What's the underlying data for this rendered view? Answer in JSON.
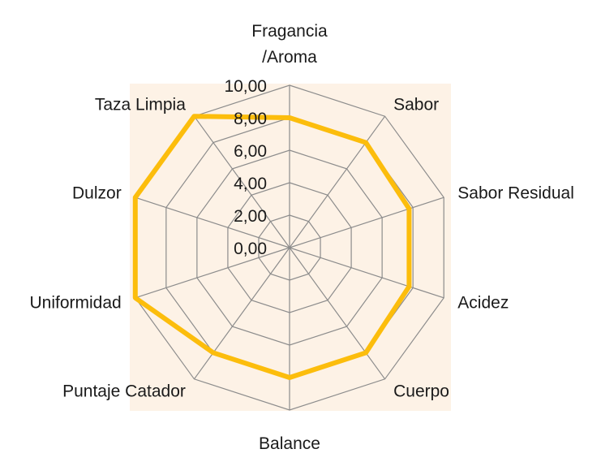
{
  "colors": {
    "plot_background": "#fdf2e6",
    "grid": "#8c8c8c",
    "series": "#fcbd0c"
  },
  "chart_data": {
    "type": "radar",
    "categories": [
      "Fragancia\n/Aroma",
      "Sabor",
      "Sabor Residual",
      "Acidez",
      "Cuerpo",
      "Balance",
      "Puntaje Catador",
      "Uniformidad",
      "Dulzor",
      "Taza Limpia"
    ],
    "series": [
      {
        "values": [
          8.0,
          8.0,
          7.75,
          7.75,
          8.0,
          8.0,
          8.0,
          10.0,
          10.0,
          10.0
        ]
      }
    ],
    "rlim": [
      0,
      10
    ],
    "ticks": [
      "0,00",
      "2,00",
      "4,00",
      "6,00",
      "8,00",
      "10,00"
    ],
    "grid": true,
    "legend": "none"
  }
}
